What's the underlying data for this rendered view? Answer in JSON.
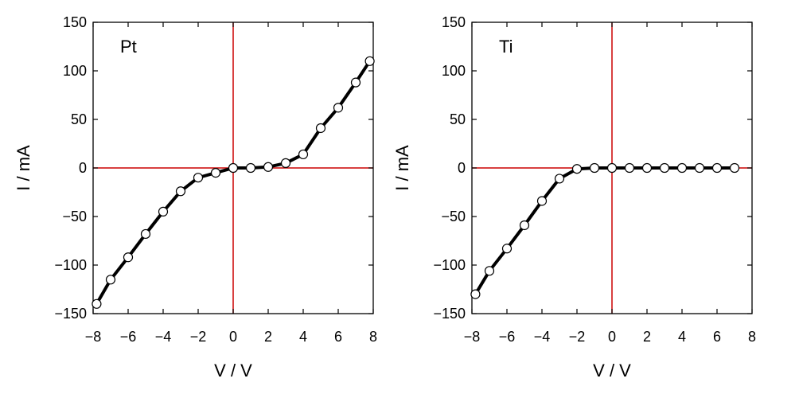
{
  "chart_data": [
    {
      "type": "line",
      "panel_label": "Pt",
      "xlabel": "V / V",
      "ylabel": "I / mA",
      "xlim": [
        -8,
        8
      ],
      "ylim": [
        -150,
        150
      ],
      "xticks": [
        -8,
        -6,
        -4,
        -2,
        0,
        2,
        4,
        6,
        8
      ],
      "yticks": [
        150,
        100,
        50,
        0,
        -50,
        -100,
        -150
      ],
      "grid": false,
      "reference_lines": {
        "x": 0,
        "y": 0,
        "color": "#cc0000"
      },
      "series": [
        {
          "x": [
            -7.8,
            -7,
            -6,
            -5,
            -4,
            -3,
            -2,
            -1,
            0,
            1,
            2,
            3,
            4,
            5,
            6,
            7,
            7.8
          ],
          "y": [
            -140,
            -115,
            -92,
            -68,
            -45,
            -24,
            -10,
            -5,
            0,
            0,
            1,
            5,
            14,
            41,
            62,
            88,
            110
          ]
        }
      ]
    },
    {
      "type": "line",
      "panel_label": "Ti",
      "xlabel": "V / V",
      "ylabel": "I / mA",
      "xlim": [
        -8,
        8
      ],
      "ylim": [
        -150,
        150
      ],
      "xticks": [
        -8,
        -6,
        -4,
        -2,
        0,
        2,
        4,
        6,
        8
      ],
      "yticks": [
        150,
        100,
        50,
        0,
        -50,
        -100,
        -150
      ],
      "grid": false,
      "reference_lines": {
        "x": 0,
        "y": 0,
        "color": "#cc0000"
      },
      "series": [
        {
          "x": [
            -7.8,
            -7,
            -6,
            -5,
            -4,
            -3,
            -2,
            -1,
            0,
            1,
            2,
            3,
            4,
            5,
            6,
            7
          ],
          "y": [
            -130,
            -106,
            -83,
            -59,
            -34,
            -11,
            -1,
            0,
            0,
            0,
            0,
            0,
            0,
            0,
            0,
            0
          ]
        }
      ]
    }
  ],
  "colors": {
    "axis": "#000000",
    "reference_line": "#cc0000",
    "line": "#000000",
    "marker_fill": "#ffffff"
  }
}
